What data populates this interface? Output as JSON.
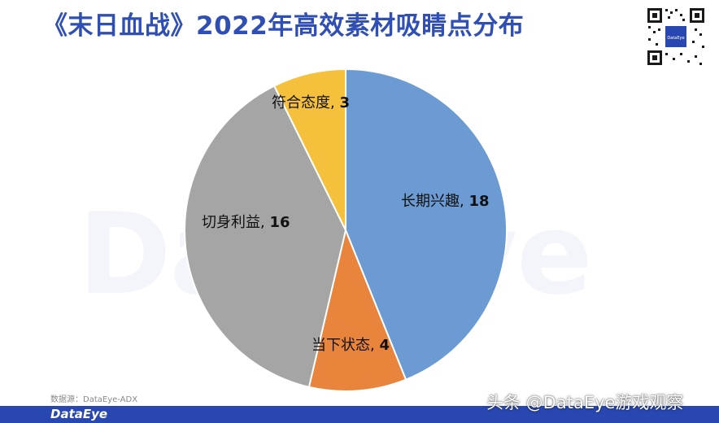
{
  "header": {
    "title": "《末日血战》2022年高效素材吸睛点分布"
  },
  "brand": {
    "watermark": "DataEye",
    "footer_logo": "DataEye",
    "accent": "#2947b0"
  },
  "source_note": "数据源：DataEye-ADX",
  "credit": "头条 @DataEye游戏观察",
  "chart_data": {
    "type": "pie",
    "title": "《末日血战》2022年高效素材吸睛点分布",
    "start": "12 o'clock, clockwise",
    "slices": [
      {
        "label": "长期兴趣",
        "value": 18,
        "color": "#6b9bd2"
      },
      {
        "label": "当下状态",
        "value": 4,
        "color": "#e8843c"
      },
      {
        "label": "切身利益",
        "value": 16,
        "color": "#a5a5a5"
      },
      {
        "label": "符合态度",
        "value": 3,
        "color": "#f5c13c"
      }
    ]
  }
}
